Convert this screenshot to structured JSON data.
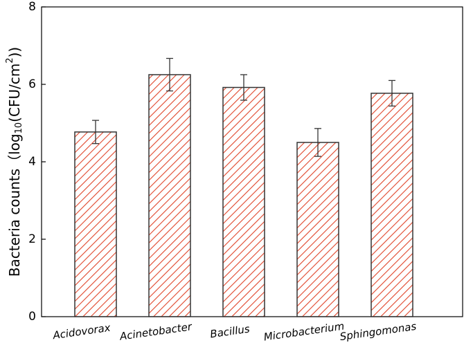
{
  "chart_data": {
    "type": "bar",
    "ylabel": [
      "Bacteria counts（log",
      "10",
      "(CFU/cm",
      "2",
      "))"
    ],
    "categories": [
      "Acidovorax",
      "Acinetobacter",
      "Bacillus",
      "Microbacterium",
      "Sphingomonas"
    ],
    "values": [
      4.77,
      6.25,
      5.92,
      4.5,
      5.77
    ],
    "errors": [
      0.3,
      0.42,
      0.33,
      0.36,
      0.33
    ],
    "color": "#e0452a",
    "ylim": [
      0,
      8
    ],
    "yticks": [
      0,
      2,
      4,
      6,
      8
    ]
  }
}
